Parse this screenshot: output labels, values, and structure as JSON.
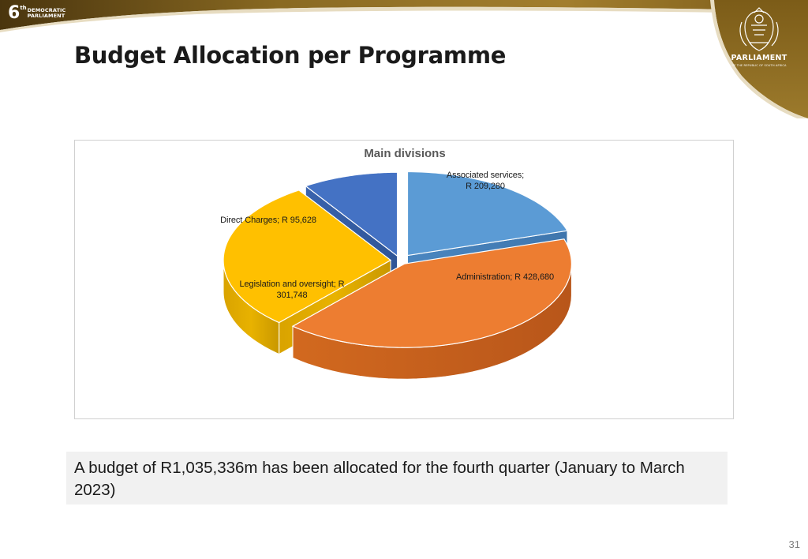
{
  "header": {
    "logo_number": "6",
    "logo_suffix": "th",
    "logo_line1": "DEMOCRATIC",
    "logo_line2": "PARLIAMENT",
    "parliament_name": "PARLIAMENT",
    "parliament_subtitle": "OF THE REPUBLIC OF SOUTH AFRICA"
  },
  "page_title": "Budget Allocation per Programme",
  "chart_data": {
    "type": "pie",
    "style": "3d-exploded",
    "title": "Main divisions",
    "slices": [
      {
        "name": "Associated services",
        "value": 209280,
        "label_line1": "Associated services;",
        "label_line2": "R 209,280",
        "color": "#5b9bd5"
      },
      {
        "name": "Administration",
        "value": 428680,
        "label_line1": "Administration;  R 428,680",
        "label_line2": "",
        "color": "#ed7d31"
      },
      {
        "name": "Legislation and oversight",
        "value": 301748,
        "label_line1": "Legislation and oversight;  R",
        "label_line2": "301,748",
        "color": "#ffc000"
      },
      {
        "name": "Direct Charges",
        "value": 95628,
        "label_line1": "Direct Charges;  R 95,628",
        "label_line2": "",
        "color": "#4472c4"
      }
    ]
  },
  "summary": {
    "text": "A budget of R1,035,336m has been allocated for the fourth quarter (January to March 2023)"
  },
  "page_number": "31",
  "colors": {
    "header_gold": "#8a6a1e",
    "header_dark": "#3b2a0c",
    "title_text": "#1a1a1a"
  }
}
